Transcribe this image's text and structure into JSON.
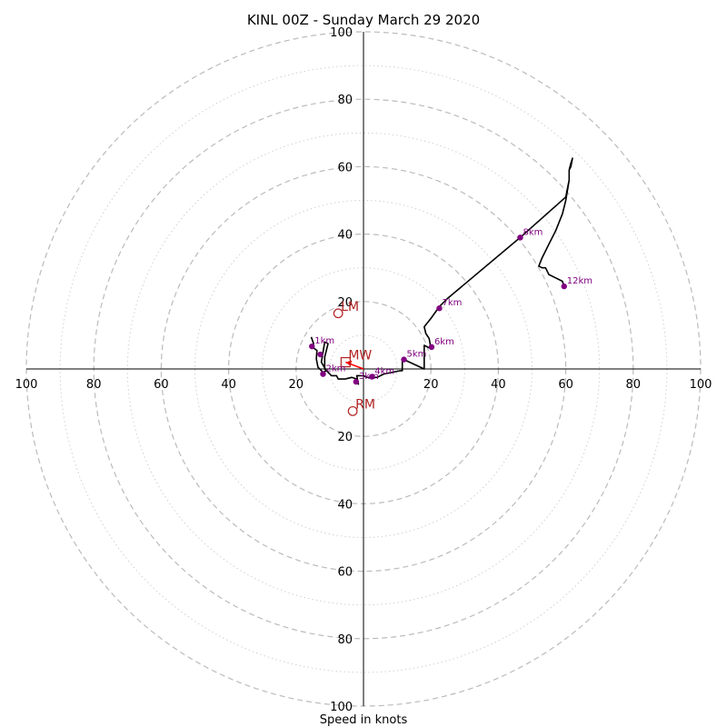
{
  "chart_data": {
    "type": "hodograph",
    "title": "KINL 00Z - Sunday March 29 2020",
    "xlabel": "Speed in knots",
    "range": [
      -100,
      100
    ],
    "ring_values": [
      10,
      20,
      30,
      40,
      50,
      60,
      70,
      80,
      90,
      100
    ],
    "labeled_rings": [
      20,
      40,
      60,
      80,
      100
    ],
    "x_tick_labels": [
      "100",
      "80",
      "60",
      "40",
      "20",
      "20",
      "40",
      "60",
      "80",
      "100"
    ],
    "y_tick_labels": [
      "100",
      "80",
      "60",
      "40",
      "20",
      "20",
      "40",
      "60",
      "80",
      "100"
    ],
    "colors": {
      "trace": "#000000",
      "points": "#800080",
      "storm_motion": "#b22222",
      "mean_wind_vector": "#ff0000",
      "grid": "#bbbbbb"
    },
    "trace": [
      [
        -15.5,
        9.5
      ],
      [
        -14.8,
        7.5
      ],
      [
        -15.2,
        6.5
      ],
      [
        -13.8,
        5.5
      ],
      [
        -14.0,
        3.0
      ],
      [
        -13.5,
        0.5
      ],
      [
        -12.0,
        -1.0
      ],
      [
        -11.0,
        -0.5
      ],
      [
        -12.5,
        2.0
      ],
      [
        -12.0,
        5.0
      ],
      [
        -11.5,
        8.0
      ],
      [
        -10.5,
        7.5
      ],
      [
        -11.5,
        3.5
      ],
      [
        -11.5,
        0.0
      ],
      [
        -9.5,
        -2.0
      ],
      [
        -8.0,
        -2.0
      ],
      [
        -7.5,
        -3.0
      ],
      [
        -5.5,
        -3.0
      ],
      [
        -3.5,
        -2.5
      ],
      [
        -2.0,
        -3.0
      ],
      [
        -1.5,
        -4.5
      ],
      [
        -2.0,
        -2.0
      ],
      [
        0.0,
        -2.0
      ],
      [
        1.0,
        -2.5
      ],
      [
        4.0,
        -2.5
      ],
      [
        6.0,
        -1.5
      ],
      [
        11.0,
        -0.5
      ],
      [
        11.5,
        -0.5
      ],
      [
        11.5,
        3.0
      ],
      [
        18.0,
        0.0
      ],
      [
        18.0,
        7.0
      ],
      [
        20.0,
        6.0
      ],
      [
        19.5,
        9.0
      ],
      [
        18.5,
        10.5
      ],
      [
        18.0,
        12.5
      ],
      [
        20.0,
        15.0
      ],
      [
        22.5,
        18.5
      ],
      [
        25.0,
        21.0
      ],
      [
        46.5,
        39.0
      ],
      [
        60.0,
        51.0
      ],
      [
        61.0,
        56.0
      ],
      [
        61.0,
        59.0
      ],
      [
        61.5,
        61.0
      ],
      [
        62.0,
        62.5
      ],
      [
        61.5,
        60.0
      ],
      [
        61.0,
        59.0
      ],
      [
        61.0,
        56.0
      ],
      [
        60.0,
        50.0
      ],
      [
        59.0,
        46.0
      ],
      [
        57.0,
        41.0
      ],
      [
        55.0,
        37.0
      ],
      [
        53.0,
        33.0
      ],
      [
        52.0,
        30.5
      ],
      [
        53.0,
        30.0
      ],
      [
        54.0,
        30.0
      ],
      [
        55.0,
        28.0
      ],
      [
        57.0,
        27.0
      ],
      [
        59.0,
        26.0
      ],
      [
        59.5,
        24.5
      ]
    ],
    "height_markers": [
      {
        "label": "1km",
        "x": -15.3,
        "y": 6.7
      },
      {
        "label": "2km",
        "x": -12.0,
        "y": -1.5
      },
      {
        "label": "3km",
        "x": -2.2,
        "y": -3.8
      },
      {
        "label": "4km",
        "x": 2.5,
        "y": -2.3
      },
      {
        "label": "5km",
        "x": 12.0,
        "y": 2.8
      },
      {
        "label": "6km",
        "x": 20.2,
        "y": 6.5
      },
      {
        "label": "7km",
        "x": 22.5,
        "y": 18.0
      },
      {
        "label": "8km",
        "x": 46.5,
        "y": 39.0
      },
      {
        "label": "12km",
        "x": 59.5,
        "y": 24.5
      },
      {
        "label": "",
        "x": -12.8,
        "y": 4.3
      }
    ],
    "storm_motions": [
      {
        "label": "LM",
        "x": -7.5,
        "y": 16.5,
        "marker": "circle"
      },
      {
        "label": "RM",
        "x": -3.2,
        "y": -12.5,
        "marker": "circle"
      },
      {
        "label": "MW",
        "x": -5.3,
        "y": 2.0,
        "marker": "square"
      }
    ],
    "mean_wind_vector": {
      "x": -5.3,
      "y": 2.0
    }
  }
}
